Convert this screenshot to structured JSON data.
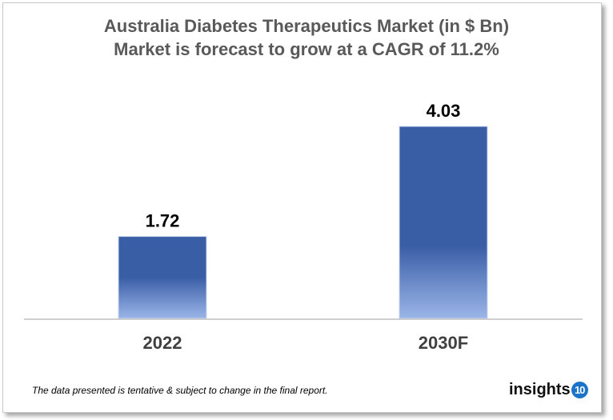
{
  "chart_data": {
    "type": "bar",
    "title": "Australia Diabetes Therapeutics Market (in $ Bn)",
    "subtitle": "Market is forecast to grow at a CAGR of 11.2%",
    "categories": [
      "2022",
      "2030F"
    ],
    "values": [
      1.72,
      4.03
    ],
    "data_labels": [
      "1.72",
      "4.03"
    ],
    "xlabel": "",
    "ylabel": "",
    "ylim": [
      0,
      4.03
    ],
    "grid": false,
    "legend": "none",
    "colors": {
      "bar_top": "#3a5ea6",
      "bar_bottom": "#9bb5e8",
      "title": "#595959",
      "axis": "#bfbfbf"
    }
  },
  "footnote": "The data presented is tentative & subject to change in the final report.",
  "logo": {
    "text": "insights",
    "badge": "10",
    "badge_color": "#1a75c9"
  }
}
